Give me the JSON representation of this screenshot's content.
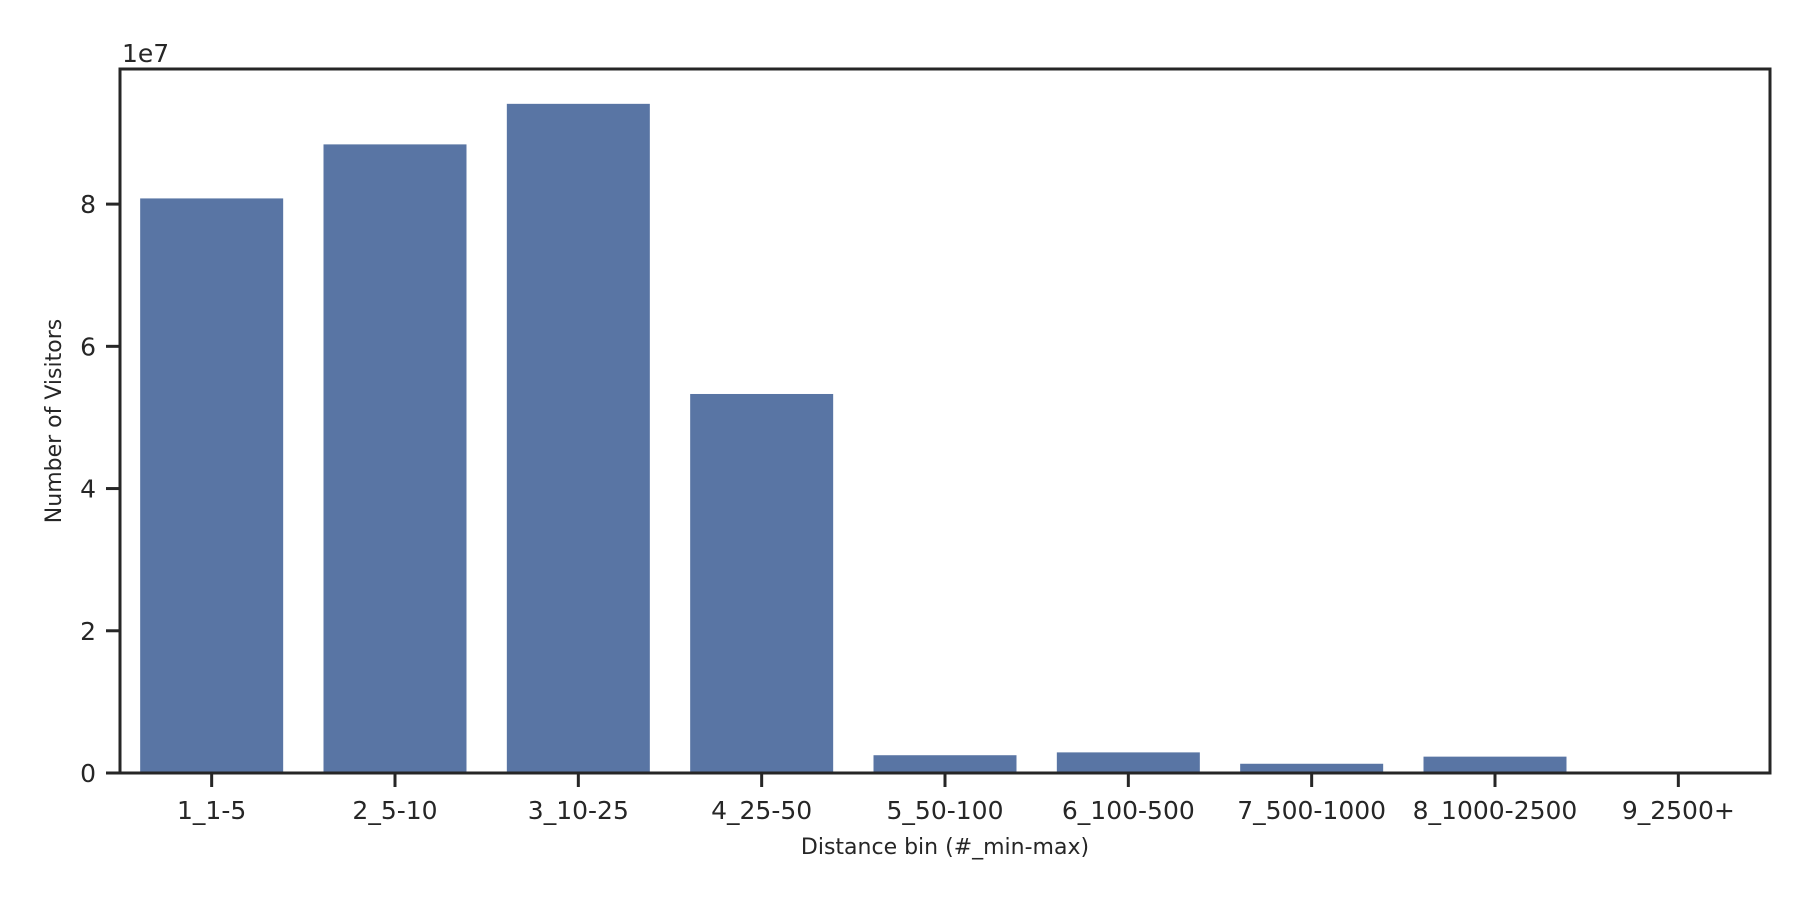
{
  "chart_data": {
    "type": "bar",
    "title": "",
    "xlabel": "Distance bin (#_min-max)",
    "ylabel": "Number of Visitors",
    "y_offset_label": "1e7",
    "y_scale_factor": 10000000,
    "categories": [
      "1_1-5",
      "2_5-10",
      "3_10-25",
      "4_25-50",
      "5_50-100",
      "6_100-500",
      "7_500-1000",
      "8_1000-2500",
      "9_2500+"
    ],
    "values": [
      80800000,
      88400000,
      94100000,
      53300000,
      2500000,
      2900000,
      1300000,
      2300000,
      0
    ],
    "ylim": [
      0,
      99000000
    ],
    "yticks": [
      0,
      20000000,
      40000000,
      60000000,
      80000000
    ],
    "ytick_labels": [
      "0",
      "2",
      "4",
      "6",
      "8"
    ],
    "grid": false,
    "legend": "none",
    "bar_color": "#5975a4",
    "axis_color": "#262626"
  }
}
